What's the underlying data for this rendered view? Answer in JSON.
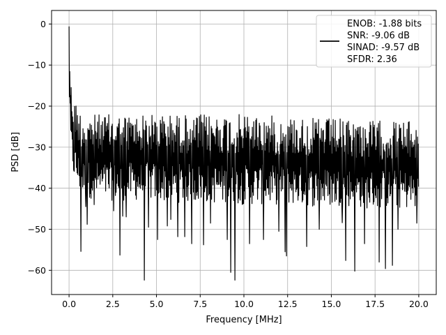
{
  "chart_data": {
    "type": "line",
    "title": "",
    "xlabel": "Frequency [MHz]",
    "ylabel": "PSD [dB]",
    "xlim": [
      -1.0,
      21.0
    ],
    "ylim": [
      -65.9,
      3.3
    ],
    "xticks": [
      0.0,
      2.5,
      5.0,
      7.5,
      10.0,
      12.5,
      15.0,
      17.5,
      20.0
    ],
    "xtick_labels": [
      "0.0",
      "2.5",
      "5.0",
      "7.5",
      "10.0",
      "12.5",
      "15.0",
      "17.5",
      "20.0"
    ],
    "yticks": [
      0,
      -10,
      -20,
      -30,
      -40,
      -50,
      -60
    ],
    "ytick_labels": [
      "0",
      "−10",
      "−20",
      "−30",
      "−40",
      "−50",
      "−60"
    ],
    "grid": true,
    "legend_position": "top-right",
    "line_color": "#000000",
    "series": [
      {
        "x": [
          0.0,
          0.02,
          0.05,
          0.08,
          0.12,
          0.16,
          0.2,
          0.25,
          0.3,
          0.4,
          0.5,
          0.6,
          0.7,
          0.8,
          1.0,
          1.2,
          1.5,
          2.0,
          2.5,
          3.0,
          4.0,
          5.0,
          6.0,
          7.0,
          8.0,
          9.0,
          10.0,
          11.0,
          12.0,
          13.0,
          14.0,
          15.0,
          16.0,
          17.0,
          18.0,
          19.0,
          20.0
        ],
        "upper": [
          0.0,
          -4,
          -8,
          -12,
          -14,
          -15,
          -16,
          -17,
          -18,
          -19,
          -20,
          -21,
          -21,
          -21.5,
          -22,
          -22,
          -22,
          -22,
          -22,
          -22,
          -22,
          -22,
          -22,
          -22,
          -22,
          -22,
          -22,
          -22,
          -22.5,
          -22.5,
          -23,
          -23,
          -23,
          -23.5,
          -23.5,
          -23.5,
          -24
        ],
        "lower": [
          -2,
          -20,
          -26,
          -30,
          -33,
          -35,
          -36,
          -37,
          -38,
          -39,
          -40,
          -41,
          -41,
          -42,
          -42,
          -42.5,
          -42.5,
          -43,
          -43,
          -43,
          -43,
          -43,
          -43.5,
          -43.5,
          -43.5,
          -44,
          -44,
          -44,
          -44,
          -44,
          -44.5,
          -44.5,
          -44.5,
          -45,
          -45,
          -45,
          -45
        ]
      }
    ],
    "deep_dips": [
      {
        "x": 0.28,
        "y": -35.8
      },
      {
        "x": 0.68,
        "y": -55.4
      },
      {
        "x": 0.95,
        "y": -44.5
      },
      {
        "x": 1.03,
        "y": -48.8
      },
      {
        "x": 1.45,
        "y": -44.0
      },
      {
        "x": 2.55,
        "y": -45.5
      },
      {
        "x": 2.9,
        "y": -56.3
      },
      {
        "x": 3.05,
        "y": -46.8
      },
      {
        "x": 3.25,
        "y": -47.0
      },
      {
        "x": 4.3,
        "y": -62.4
      },
      {
        "x": 4.55,
        "y": -49.5
      },
      {
        "x": 5.05,
        "y": -52.5
      },
      {
        "x": 5.6,
        "y": -49.2
      },
      {
        "x": 5.8,
        "y": -47.6
      },
      {
        "x": 6.2,
        "y": -51.8
      },
      {
        "x": 6.6,
        "y": -51.8
      },
      {
        "x": 7.0,
        "y": -53.5
      },
      {
        "x": 7.7,
        "y": -53.8
      },
      {
        "x": 8.1,
        "y": -48.5
      },
      {
        "x": 9.05,
        "y": -52.5
      },
      {
        "x": 9.25,
        "y": -60.5
      },
      {
        "x": 9.5,
        "y": -62.4
      },
      {
        "x": 10.3,
        "y": -53.5
      },
      {
        "x": 11.1,
        "y": -52.5
      },
      {
        "x": 12.0,
        "y": -50.5
      },
      {
        "x": 12.35,
        "y": -55.5
      },
      {
        "x": 12.45,
        "y": -56.5
      },
      {
        "x": 13.6,
        "y": -54.2
      },
      {
        "x": 14.3,
        "y": -50.0
      },
      {
        "x": 15.6,
        "y": -48.4
      },
      {
        "x": 15.8,
        "y": -57.6
      },
      {
        "x": 16.35,
        "y": -60.2
      },
      {
        "x": 16.9,
        "y": -53.5
      },
      {
        "x": 17.75,
        "y": -58.0
      },
      {
        "x": 18.1,
        "y": -59.6
      },
      {
        "x": 18.5,
        "y": -58.8
      },
      {
        "x": 18.8,
        "y": -50.0
      },
      {
        "x": 19.9,
        "y": -48.5
      }
    ]
  },
  "legend": {
    "lines": [
      "ENOB: -1.88 bits",
      "SNR: -9.06 dB",
      "SINAD: -9.57 dB",
      "SFDR: 2.36"
    ]
  }
}
